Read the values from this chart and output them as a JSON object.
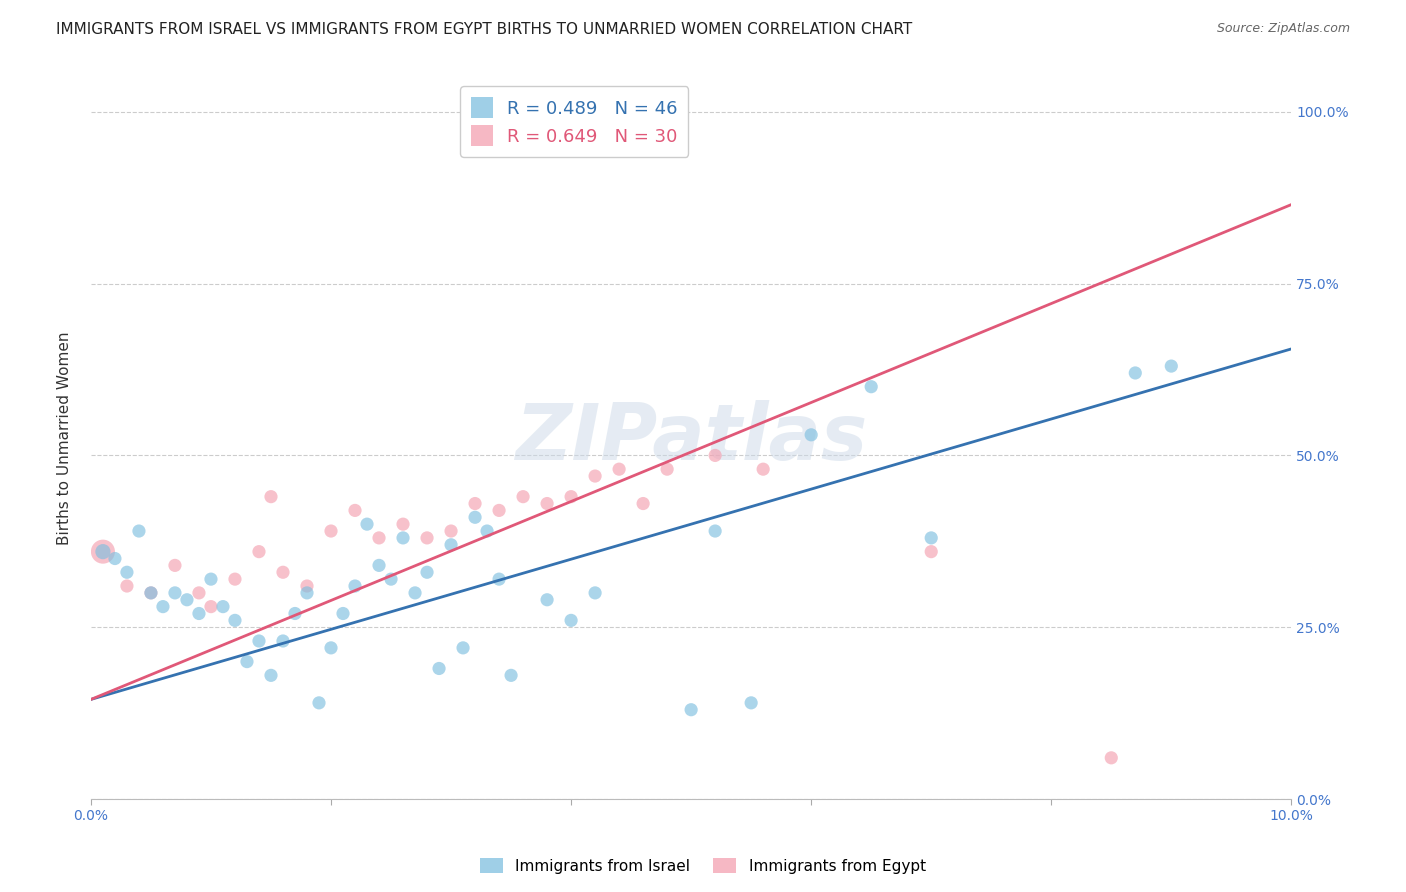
{
  "title": "IMMIGRANTS FROM ISRAEL VS IMMIGRANTS FROM EGYPT BIRTHS TO UNMARRIED WOMEN CORRELATION CHART",
  "source": "Source: ZipAtlas.com",
  "ylabel": "Births to Unmarried Women",
  "legend_label_israel": "Immigrants from Israel",
  "legend_label_egypt": "Immigrants from Egypt",
  "R_israel": 0.489,
  "N_israel": 46,
  "R_egypt": 0.649,
  "N_egypt": 30,
  "color_israel": "#7fbfdf",
  "color_egypt": "#f4a0b0",
  "color_israel_line": "#3572b0",
  "color_egypt_line": "#e05878",
  "watermark": "ZIPatlas",
  "xlim": [
    0.0,
    0.1
  ],
  "ylim": [
    0.0,
    1.05
  ],
  "israel_x": [
    0.001,
    0.002,
    0.003,
    0.004,
    0.005,
    0.006,
    0.007,
    0.008,
    0.009,
    0.01,
    0.011,
    0.012,
    0.013,
    0.014,
    0.015,
    0.016,
    0.017,
    0.018,
    0.019,
    0.02,
    0.021,
    0.022,
    0.023,
    0.024,
    0.025,
    0.026,
    0.027,
    0.028,
    0.029,
    0.03,
    0.031,
    0.032,
    0.033,
    0.034,
    0.035,
    0.038,
    0.04,
    0.042,
    0.05,
    0.052,
    0.055,
    0.06,
    0.065,
    0.07,
    0.087,
    0.09
  ],
  "israel_y": [
    0.36,
    0.35,
    0.33,
    0.39,
    0.3,
    0.28,
    0.3,
    0.29,
    0.27,
    0.32,
    0.28,
    0.26,
    0.2,
    0.23,
    0.18,
    0.23,
    0.27,
    0.3,
    0.14,
    0.22,
    0.27,
    0.31,
    0.4,
    0.34,
    0.32,
    0.38,
    0.3,
    0.33,
    0.19,
    0.37,
    0.22,
    0.41,
    0.39,
    0.32,
    0.18,
    0.29,
    0.26,
    0.3,
    0.13,
    0.39,
    0.14,
    0.53,
    0.6,
    0.38,
    0.62,
    0.63
  ],
  "israel_size": [
    120,
    90,
    90,
    90,
    90,
    90,
    90,
    90,
    90,
    90,
    90,
    90,
    90,
    90,
    90,
    90,
    90,
    90,
    90,
    90,
    90,
    90,
    90,
    90,
    90,
    90,
    90,
    90,
    90,
    90,
    90,
    90,
    90,
    90,
    90,
    90,
    90,
    90,
    90,
    90,
    90,
    90,
    90,
    90,
    90,
    90
  ],
  "egypt_x": [
    0.001,
    0.003,
    0.005,
    0.007,
    0.009,
    0.01,
    0.012,
    0.014,
    0.015,
    0.016,
    0.018,
    0.02,
    0.022,
    0.024,
    0.026,
    0.028,
    0.03,
    0.032,
    0.034,
    0.036,
    0.038,
    0.04,
    0.042,
    0.044,
    0.046,
    0.048,
    0.052,
    0.056,
    0.07,
    0.085
  ],
  "egypt_y": [
    0.36,
    0.31,
    0.3,
    0.34,
    0.3,
    0.28,
    0.32,
    0.36,
    0.44,
    0.33,
    0.31,
    0.39,
    0.42,
    0.38,
    0.4,
    0.38,
    0.39,
    0.43,
    0.42,
    0.44,
    0.43,
    0.44,
    0.47,
    0.48,
    0.43,
    0.48,
    0.5,
    0.48,
    0.36,
    0.06
  ],
  "egypt_size": [
    300,
    90,
    90,
    90,
    90,
    90,
    90,
    90,
    90,
    90,
    90,
    90,
    90,
    90,
    90,
    90,
    90,
    90,
    90,
    90,
    90,
    90,
    90,
    90,
    90,
    90,
    90,
    90,
    90,
    90
  ],
  "line_israel_x0": 0.0,
  "line_israel_y0": 0.145,
  "line_israel_x1": 0.1,
  "line_israel_y1": 0.655,
  "line_egypt_x0": 0.0,
  "line_egypt_y0": 0.145,
  "line_egypt_x1": 0.1,
  "line_egypt_y1": 0.865
}
